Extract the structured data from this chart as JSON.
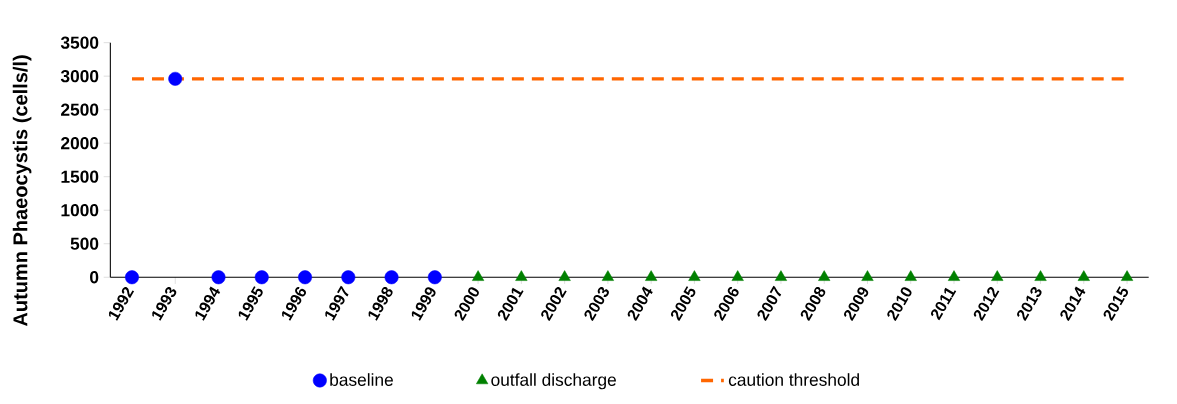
{
  "chart_data": {
    "type": "scatter",
    "ylabel": "Autumn Phaeocystis (cells/l)",
    "categories": [
      "1992",
      "1993",
      "1994",
      "1995",
      "1996",
      "1997",
      "1998",
      "1999",
      "2000",
      "2001",
      "2002",
      "2003",
      "2004",
      "2005",
      "2006",
      "2007",
      "2008",
      "2009",
      "2010",
      "2011",
      "2012",
      "2013",
      "2014",
      "2015"
    ],
    "series": [
      {
        "name": "baseline",
        "color": "#0000ff",
        "marker": "circle",
        "values": [
          0,
          2960,
          0,
          0,
          0,
          0,
          0,
          0,
          null,
          null,
          null,
          null,
          null,
          null,
          null,
          null,
          null,
          null,
          null,
          null,
          null,
          null,
          null,
          null
        ]
      },
      {
        "name": "outfall discharge",
        "color": "#008000",
        "marker": "triangle",
        "values": [
          null,
          null,
          null,
          null,
          null,
          null,
          null,
          null,
          0,
          0,
          0,
          0,
          0,
          0,
          0,
          0,
          0,
          0,
          0,
          0,
          0,
          0,
          0,
          0
        ]
      }
    ],
    "ref_lines": [
      {
        "axis": "y",
        "value": 2960,
        "label": "caution threshold",
        "color": "#ff6600",
        "line_style": "dashed"
      }
    ],
    "ylim": [
      0,
      3500
    ],
    "yticks": [
      0,
      500,
      1000,
      1500,
      2000,
      2500,
      3000,
      3500
    ],
    "grid": false,
    "legend": "bottom"
  }
}
